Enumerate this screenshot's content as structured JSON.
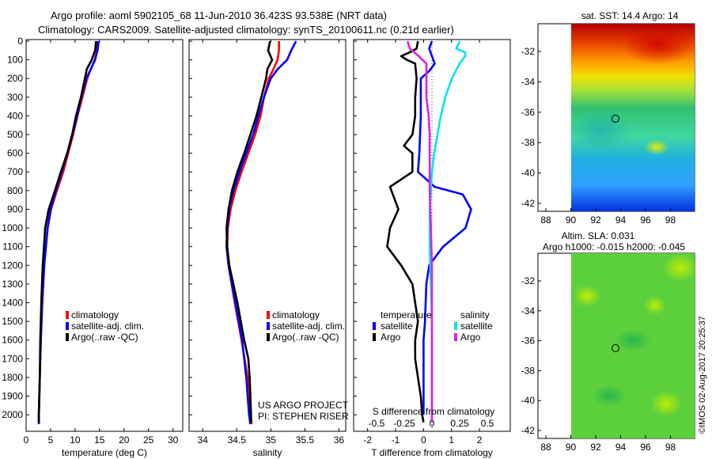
{
  "header": {
    "line1": "Argo profile: aoml 5902105_68 11-Jun-2010 36.423S 93.538E (NRT data)",
    "line2": "Climatology: CARS2009. Satellite-adjusted climatology: synTS_20100611.nc (0.21d earlier)"
  },
  "colors": {
    "climatology": "#ff0000",
    "satellite": "#0000ff",
    "argo": "#000000",
    "sat_salinity": "#00e5ee",
    "argo_salinity": "#e020e0"
  },
  "chart_data": [
    {
      "type": "line",
      "name": "temperature",
      "xlabel": "temperature (deg C)",
      "ylabel": "",
      "xlim": [
        0,
        32
      ],
      "ylim": [
        2080,
        0
      ],
      "xticks": [
        0,
        5,
        10,
        15,
        20,
        25,
        30
      ],
      "yticks": [
        0,
        100,
        200,
        300,
        400,
        500,
        600,
        700,
        800,
        900,
        1000,
        1100,
        1200,
        1300,
        1400,
        1500,
        1600,
        1700,
        1800,
        1900,
        2000
      ],
      "legend": [
        "climatology",
        "satellite-adj. clim.",
        "Argo(..raw -QC)"
      ],
      "series": [
        {
          "name": "climatology",
          "color": "#ff0000",
          "depth": [
            0,
            50,
            100,
            150,
            200,
            300,
            400,
            500,
            600,
            700,
            800,
            900,
            1000,
            1200,
            1400,
            1600,
            1800,
            2000,
            2050
          ],
          "values": [
            14.6,
            14.5,
            14.0,
            13.2,
            12.5,
            11.5,
            10.5,
            9.6,
            8.6,
            7.6,
            6.3,
            5.1,
            4.4,
            3.7,
            3.3,
            3.0,
            2.8,
            2.6,
            2.6
          ]
        },
        {
          "name": "satellite-adj. clim.",
          "color": "#0000ff",
          "depth": [
            0,
            50,
            100,
            150,
            200,
            300,
            400,
            500,
            600,
            700,
            800,
            900,
            1000,
            1200,
            1400,
            1600,
            1800,
            2000,
            2050
          ],
          "values": [
            14.8,
            14.6,
            14.1,
            13.2,
            12.3,
            11.3,
            10.4,
            9.5,
            8.4,
            7.3,
            6.1,
            5.0,
            4.4,
            3.7,
            3.3,
            3.0,
            2.8,
            2.6,
            2.6
          ]
        },
        {
          "name": "Argo(..raw -QC)",
          "color": "#000000",
          "depth": [
            0,
            50,
            100,
            150,
            200,
            300,
            400,
            500,
            600,
            700,
            800,
            900,
            1000,
            1200,
            1400,
            1600,
            1800,
            2000,
            2040
          ],
          "values": [
            14.3,
            14.1,
            13.4,
            12.4,
            12.0,
            11.2,
            10.2,
            9.4,
            8.4,
            7.1,
            5.9,
            4.6,
            3.9,
            3.4,
            3.1,
            2.9,
            2.8,
            2.6,
            2.6
          ]
        }
      ]
    },
    {
      "type": "line",
      "name": "salinity",
      "xlabel": "salinity",
      "xlim": [
        33.8,
        36.1
      ],
      "ylim": [
        2080,
        0
      ],
      "xticks": [
        34,
        34.5,
        35,
        35.5,
        36
      ],
      "legend": [
        "climatology",
        "satellite-adj. clim.",
        "Argo(..raw -QC)"
      ],
      "annotation": [
        "US ARGO PROJECT",
        "PI: STEPHEN RISER"
      ],
      "series": [
        {
          "name": "climatology",
          "color": "#ff0000",
          "depth": [
            0,
            50,
            100,
            150,
            200,
            300,
            400,
            500,
            600,
            700,
            800,
            900,
            1000,
            1100,
            1200,
            1400,
            1600,
            1800,
            2000,
            2050
          ],
          "values": [
            35.12,
            35.12,
            35.1,
            35.04,
            34.97,
            34.9,
            34.85,
            34.77,
            34.67,
            34.57,
            34.48,
            34.41,
            34.37,
            34.36,
            34.38,
            34.47,
            34.57,
            34.66,
            34.7,
            34.72
          ]
        },
        {
          "name": "satellite-adj. clim.",
          "color": "#0000ff",
          "depth": [
            0,
            50,
            100,
            150,
            200,
            300,
            400,
            500,
            600,
            700,
            800,
            900,
            1000,
            1100,
            1200,
            1400,
            1600,
            1800,
            2000,
            2050
          ],
          "values": [
            35.37,
            35.3,
            35.24,
            35.1,
            35.0,
            34.9,
            34.82,
            34.74,
            34.64,
            34.54,
            34.45,
            34.39,
            34.36,
            34.35,
            34.38,
            34.48,
            34.58,
            34.64,
            34.68,
            34.7
          ]
        },
        {
          "name": "Argo(..raw -QC)",
          "color": "#000000",
          "depth": [
            0,
            50,
            100,
            150,
            200,
            300,
            400,
            500,
            600,
            700,
            800,
            900,
            1000,
            1100,
            1200,
            1400,
            1600,
            1700,
            1800,
            2000,
            2040
          ],
          "values": [
            34.99,
            34.96,
            35.02,
            34.95,
            34.93,
            34.86,
            34.79,
            34.7,
            34.61,
            34.51,
            34.43,
            34.38,
            34.35,
            34.36,
            34.39,
            34.51,
            34.61,
            34.67,
            34.69,
            34.71,
            34.71
          ]
        }
      ]
    },
    {
      "type": "line",
      "name": "differences",
      "xlabel": "T difference from climatology",
      "xlabel_top": "S difference from climatology",
      "xlim": [
        -2.5,
        3.1
      ],
      "ylim": [
        2080,
        0
      ],
      "xticks": [
        -2,
        -1,
        0,
        1,
        2
      ],
      "sticks": [
        -0.5,
        -0.25,
        0,
        0.25,
        0.5
      ],
      "legend_titles": [
        "temperature",
        "salinity"
      ],
      "legend": [
        "satellite",
        "Argo",
        "satellite",
        "Argo"
      ],
      "series": [
        {
          "name": "temperature satellite",
          "color": "#0000ff",
          "depth": [
            0,
            40,
            80,
            120,
            160,
            200,
            400,
            600,
            700,
            780,
            820,
            900,
            1000,
            1100,
            1200,
            1300,
            1500,
            1600,
            1700,
            2000
          ],
          "values": [
            0.3,
            0.2,
            0.3,
            0.4,
            0.2,
            -0.1,
            -0.1,
            -0.15,
            -0.2,
            0.4,
            1.4,
            1.7,
            1.5,
            0.7,
            0.2,
            0.1,
            0.05,
            0.0,
            0.0,
            0.0
          ]
        },
        {
          "name": "temperature Argo",
          "color": "#000000",
          "depth": [
            0,
            40,
            60,
            80,
            100,
            120,
            200,
            300,
            400,
            500,
            560,
            600,
            700,
            780,
            820,
            900,
            1000,
            1100,
            1200,
            1300,
            1400,
            1500,
            1600,
            1700,
            1800,
            1900,
            2000,
            2040
          ],
          "values": [
            -0.2,
            -0.25,
            -0.5,
            -0.8,
            -0.6,
            -0.3,
            -0.25,
            -0.3,
            -0.3,
            -0.4,
            -0.7,
            -0.4,
            -0.4,
            -1.2,
            -1.1,
            -0.9,
            -1.2,
            -1.3,
            -0.8,
            -0.4,
            -0.3,
            -0.2,
            -0.3,
            -0.3,
            -0.2,
            -0.1,
            -0.05,
            0.0
          ]
        },
        {
          "name": "salinity satellite",
          "color": "#00e5ee",
          "depth": [
            0,
            40,
            60,
            80,
            120,
            200,
            300,
            400,
            500,
            600,
            700,
            900,
            1100,
            1300,
            1500,
            1700,
            1900,
            2040
          ],
          "values": [
            0.25,
            0.22,
            0.3,
            0.3,
            0.25,
            0.18,
            0.12,
            0.08,
            0.05,
            0.02,
            0.0,
            -0.02,
            -0.02,
            -0.01,
            0.0,
            0.0,
            0.0,
            0.0
          ]
        },
        {
          "name": "salinity Argo",
          "color": "#e020e0",
          "depth": [
            0,
            40,
            80,
            120,
            200,
            300,
            400,
            500,
            600,
            800,
            1000,
            1200,
            1400,
            1600,
            1800,
            2000,
            2040
          ],
          "values": [
            -0.22,
            -0.2,
            -0.12,
            -0.05,
            -0.05,
            -0.05,
            -0.03,
            -0.02,
            -0.02,
            -0.02,
            -0.01,
            0.0,
            0.0,
            0.0,
            0.0,
            0.0,
            0.0
          ]
        }
      ]
    }
  ],
  "maps": {
    "sst": {
      "title": "sat. SST: 14.4 Argo: 14",
      "lats": [
        "-32",
        "-34",
        "-36",
        "-38",
        "-40",
        "-42"
      ],
      "lons": [
        "88",
        "90",
        "92",
        "94",
        "96",
        "98"
      ]
    },
    "sla": {
      "title1": "Altim. SLA: 0.031",
      "title2": "Argo h1000: -0.015 h2000: -0.045",
      "lats": [
        "-32",
        "-34",
        "-36",
        "-38",
        "-40",
        "-42"
      ],
      "lons": [
        "88",
        "90",
        "92",
        "94",
        "96",
        "98"
      ]
    }
  },
  "footer": {
    "stamp": "©IMOS 02-Aug-2017 20:25:37"
  }
}
